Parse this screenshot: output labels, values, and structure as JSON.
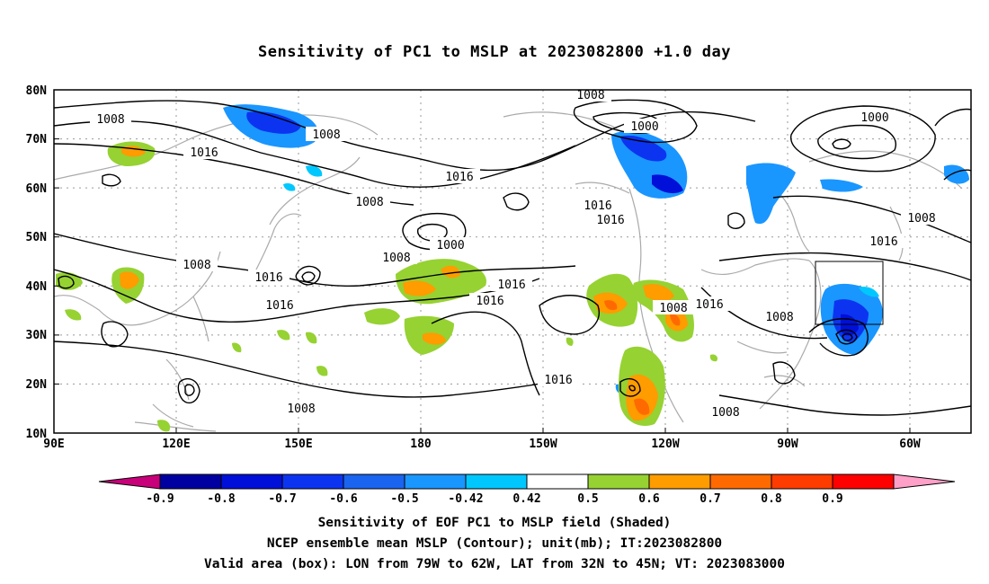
{
  "title": "Sensitivity of PC1 to MSLP at 2023082800 +1.0 day",
  "lat_labels": [
    "80N",
    "70N",
    "60N",
    "50N",
    "40N",
    "30N",
    "20N",
    "10N"
  ],
  "lon_labels": [
    "90E",
    "120E",
    "150E",
    "180",
    "150W",
    "120W",
    "90W",
    "60W"
  ],
  "contour_labels": [
    "1008",
    "1008",
    "1016",
    "1008",
    "1008",
    "1016",
    "1008",
    "1000",
    "1016",
    "1016",
    "1000",
    "1008",
    "1016",
    "1016",
    "1016",
    "1016",
    "1016",
    "1008",
    "1016",
    "1000",
    "1008",
    "1016",
    "1008",
    "1008",
    "1016",
    "1008"
  ],
  "colorbar": {
    "labels": [
      "-0.9",
      "-0.8",
      "-0.7",
      "-0.6",
      "-0.5",
      "-0.42",
      "0.42",
      "0.5",
      "0.6",
      "0.7",
      "0.8",
      "0.9"
    ],
    "colors": [
      "#0000a0",
      "#0010d8",
      "#0c34f0",
      "#1a64f0",
      "#1a96ff",
      "#00c8ff",
      "#ffffff",
      "#96d232",
      "#ff9c00",
      "#ff6a00",
      "#ff3c00",
      "#ff0000"
    ],
    "low_end_color": "#c8007a",
    "high_end_color": "#ffa0c8"
  },
  "captions": [
    "Sensitivity of EOF PC1 to MSLP field (Shaded)",
    "NCEP ensemble mean MSLP (Contour); unit(mb); IT:2023082800",
    "Valid area (box): LON from 79W to 62W, LAT from 32N to 45N; VT: 2023083000"
  ]
}
